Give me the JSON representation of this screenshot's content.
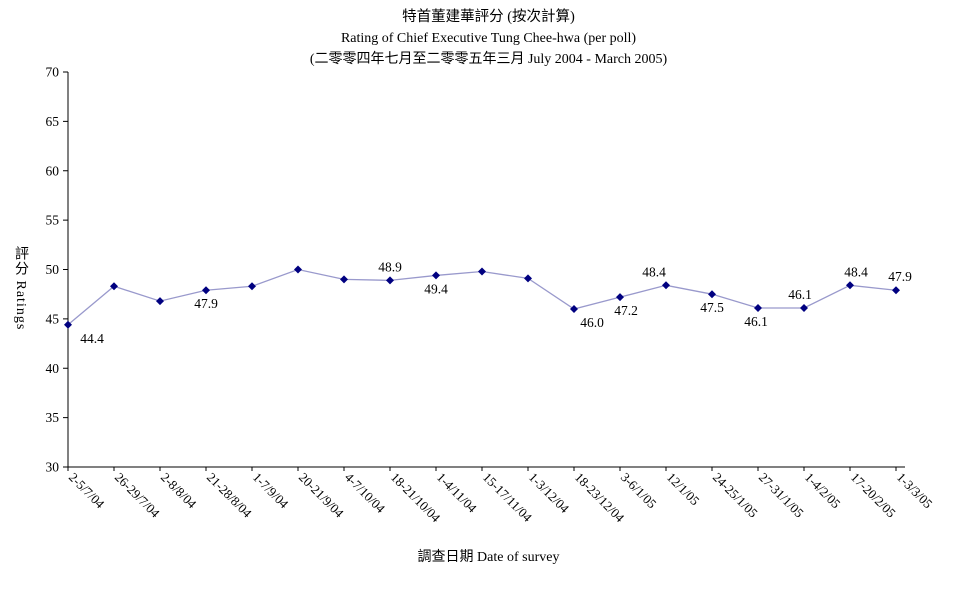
{
  "chart_data": {
    "type": "line",
    "title_line1": "特首董建華評分 (按次計算)",
    "title_line2": "Rating of Chief Executive Tung Chee-hwa  (per poll)",
    "title_line3": "(二零零四年七月至二零零五年三月 July 2004 - March 2005)",
    "xlabel": "調查日期 Date of survey",
    "ylabel": "評分 Ratings",
    "ylim": [
      30,
      70
    ],
    "yticks": [
      30,
      35,
      40,
      45,
      50,
      55,
      60,
      65,
      70
    ],
    "grid": false,
    "legend": "none",
    "line_color": "#9999cc",
    "marker_color": "#000080",
    "axis_color": "#000000",
    "categories": [
      "2-5/7/04",
      "26-29/7/04",
      "2-8/8/04",
      "21-28/8/04",
      "1-7/9/04",
      "20-21/9/04",
      "4-7/10/04",
      "18-21/10/04",
      "1-4/11/04",
      "15-17/11/04",
      "1-3/12/04",
      "18-23/12/04",
      "3-6/1/05",
      "12/1/05",
      "24-25/1/05",
      "27-31/1/05",
      "1-4/2/05",
      "17-20/2/05",
      "1-3/3/05"
    ],
    "series": [
      {
        "name": "評分 Ratings",
        "values": [
          44.4,
          48.3,
          46.8,
          47.9,
          48.3,
          50.0,
          49.0,
          48.9,
          49.4,
          49.8,
          49.1,
          46.0,
          47.2,
          48.4,
          47.5,
          46.1,
          46.1,
          48.4,
          47.9
        ]
      }
    ],
    "point_labels": [
      {
        "index": 0,
        "text": "44.4",
        "position": "below",
        "dx": 24
      },
      {
        "index": 3,
        "text": "47.9",
        "position": "below",
        "dx": 0
      },
      {
        "index": 7,
        "text": "48.9",
        "position": "above",
        "dx": 0
      },
      {
        "index": 8,
        "text": "49.4",
        "position": "below",
        "dx": 0
      },
      {
        "index": 11,
        "text": "46.0",
        "position": "below",
        "dx": 18
      },
      {
        "index": 12,
        "text": "47.2",
        "position": "below",
        "dx": 6
      },
      {
        "index": 13,
        "text": "48.4",
        "position": "above",
        "dx": -12
      },
      {
        "index": 14,
        "text": "47.5",
        "position": "below",
        "dx": 0
      },
      {
        "index": 15,
        "text": "46.1",
        "position": "below",
        "dx": -2
      },
      {
        "index": 16,
        "text": "46.1",
        "position": "above",
        "dx": -4
      },
      {
        "index": 17,
        "text": "48.4",
        "position": "above",
        "dx": 6
      },
      {
        "index": 18,
        "text": "47.9",
        "position": "above",
        "dx": 4
      }
    ]
  }
}
